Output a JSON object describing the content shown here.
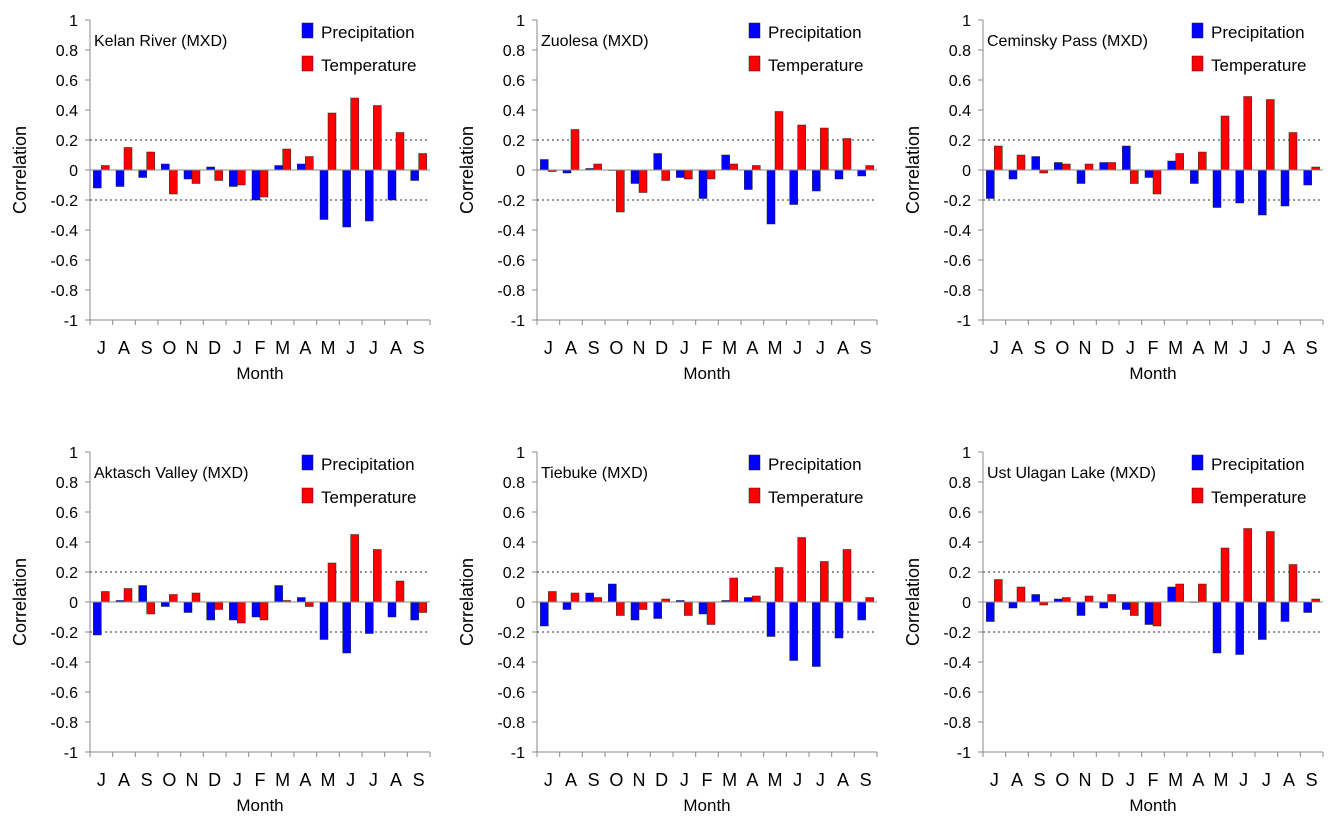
{
  "figure": {
    "xlabel": "Month",
    "ylabel": "Correlation",
    "legend_labels": [
      "Precipitation",
      "Temperature"
    ],
    "colors": {
      "precipitation": "#0000ff",
      "temperature": "#ff0000",
      "threshold_line": "#555555",
      "axis": "#888888"
    }
  },
  "chart_data": [
    {
      "type": "bar",
      "title": "Kelan River (MXD)",
      "categories": [
        "J",
        "A",
        "S",
        "O",
        "N",
        "D",
        "J",
        "F",
        "M",
        "A",
        "M",
        "J",
        "J",
        "A",
        "S"
      ],
      "series": [
        {
          "name": "Precipitation",
          "values": [
            -0.12,
            -0.11,
            -0.05,
            0.04,
            -0.06,
            0.02,
            -0.11,
            -0.2,
            0.03,
            0.04,
            -0.33,
            -0.38,
            -0.34,
            -0.2,
            -0.07
          ]
        },
        {
          "name": "Temperature",
          "values": [
            0.03,
            0.15,
            0.12,
            -0.16,
            -0.09,
            -0.07,
            -0.1,
            -0.18,
            0.14,
            0.09,
            0.38,
            0.48,
            0.43,
            0.25,
            0.11
          ]
        }
      ],
      "yticks": [
        "1",
        "0.8",
        "0.6",
        "0.4",
        "0.2",
        "0",
        "-0.2",
        "-0.4",
        "-0.6",
        "-0.8",
        "-1"
      ],
      "ylim": [
        -1,
        1
      ],
      "threshold_lines": [
        0.2,
        -0.2
      ],
      "xlabel": "Month",
      "ylabel": "Correlation",
      "legend": "top-right"
    },
    {
      "type": "bar",
      "title": "Zuolesa (MXD)",
      "categories": [
        "J",
        "A",
        "S",
        "O",
        "N",
        "D",
        "J",
        "F",
        "M",
        "A",
        "M",
        "J",
        "J",
        "A",
        "S"
      ],
      "series": [
        {
          "name": "Precipitation",
          "values": [
            0.07,
            -0.02,
            0.01,
            0.0,
            -0.09,
            0.11,
            -0.05,
            -0.19,
            0.1,
            -0.13,
            -0.36,
            -0.23,
            -0.14,
            -0.06,
            -0.04
          ]
        },
        {
          "name": "Temperature",
          "values": [
            -0.01,
            0.27,
            0.04,
            -0.28,
            -0.15,
            -0.07,
            -0.06,
            -0.06,
            0.04,
            0.03,
            0.39,
            0.3,
            0.28,
            0.21,
            0.03
          ]
        }
      ],
      "yticks": [
        "1",
        "0.8",
        "0.6",
        "0.4",
        "0.2",
        "0",
        "-0.2",
        "-0.4",
        "-0.6",
        "-0.8",
        "-1"
      ],
      "ylim": [
        -1,
        1
      ],
      "threshold_lines": [
        0.2,
        -0.2
      ],
      "xlabel": "Month",
      "ylabel": "Correlation",
      "legend": "top-right"
    },
    {
      "type": "bar",
      "title": "Ceminsky Pass (MXD)",
      "categories": [
        "J",
        "A",
        "S",
        "O",
        "N",
        "D",
        "J",
        "F",
        "M",
        "A",
        "M",
        "J",
        "J",
        "A",
        "S"
      ],
      "series": [
        {
          "name": "Precipitation",
          "values": [
            -0.19,
            -0.06,
            0.09,
            0.05,
            -0.09,
            0.05,
            0.16,
            -0.05,
            0.06,
            -0.09,
            -0.25,
            -0.22,
            -0.3,
            -0.24,
            -0.1
          ]
        },
        {
          "name": "Temperature",
          "values": [
            0.16,
            0.1,
            -0.02,
            0.04,
            0.04,
            0.05,
            -0.09,
            -0.16,
            0.11,
            0.12,
            0.36,
            0.49,
            0.47,
            0.25,
            0.02
          ]
        }
      ],
      "yticks": [
        "1",
        "0.8",
        "0.6",
        "0.4",
        "0.2",
        "0",
        "-0.2",
        "-0.4",
        "-0.6",
        "-0.8",
        "-1"
      ],
      "ylim": [
        -1,
        1
      ],
      "threshold_lines": [
        0.2,
        -0.2
      ],
      "xlabel": "Month",
      "ylabel": "Correlation",
      "legend": "top-right"
    },
    {
      "type": "bar",
      "title": "Aktasch Valley (MXD)",
      "categories": [
        "J",
        "A",
        "S",
        "O",
        "N",
        "D",
        "J",
        "F",
        "M",
        "A",
        "M",
        "J",
        "J",
        "A",
        "S"
      ],
      "series": [
        {
          "name": "Precipitation",
          "values": [
            -0.22,
            0.01,
            0.11,
            -0.03,
            -0.07,
            -0.12,
            -0.12,
            -0.1,
            0.11,
            0.03,
            -0.25,
            -0.34,
            -0.21,
            -0.1,
            -0.12
          ]
        },
        {
          "name": "Temperature",
          "values": [
            0.07,
            0.09,
            -0.08,
            0.05,
            0.06,
            -0.05,
            -0.14,
            -0.12,
            0.01,
            -0.03,
            0.26,
            0.45,
            0.35,
            0.14,
            -0.07
          ]
        }
      ],
      "yticks": [
        "1",
        "0.8",
        "0.6",
        "0.4",
        "0.2",
        "0",
        "-0.2",
        "-0.4",
        "-0.6",
        "-0.8",
        "-1"
      ],
      "ylim": [
        -1,
        1
      ],
      "threshold_lines": [
        0.2,
        -0.2
      ],
      "xlabel": "Month",
      "ylabel": "Correlation",
      "legend": "top-right"
    },
    {
      "type": "bar",
      "title": "Tiebuke (MXD)",
      "categories": [
        "J",
        "A",
        "S",
        "O",
        "N",
        "D",
        "J",
        "F",
        "M",
        "A",
        "M",
        "J",
        "J",
        "A",
        "S"
      ],
      "series": [
        {
          "name": "Precipitation",
          "values": [
            -0.16,
            -0.05,
            0.06,
            0.12,
            -0.12,
            -0.11,
            0.01,
            -0.08,
            0.01,
            0.03,
            -0.23,
            -0.39,
            -0.43,
            -0.24,
            -0.12
          ]
        },
        {
          "name": "Temperature",
          "values": [
            0.07,
            0.06,
            0.03,
            -0.09,
            -0.05,
            0.02,
            -0.09,
            -0.15,
            0.16,
            0.04,
            0.23,
            0.43,
            0.27,
            0.35,
            0.03
          ]
        }
      ],
      "yticks": [
        "1",
        "0.8",
        "0.6",
        "0.4",
        "0.2",
        "0",
        "-0.2",
        "-0.4",
        "-0.6",
        "-0.8",
        "-1"
      ],
      "ylim": [
        -1,
        1
      ],
      "threshold_lines": [
        0.2,
        -0.2
      ],
      "xlabel": "Month",
      "ylabel": "Correlation",
      "legend": "top-right"
    },
    {
      "type": "bar",
      "title": "Ust Ulagan Lake (MXD)",
      "categories": [
        "J",
        "A",
        "S",
        "O",
        "N",
        "D",
        "J",
        "F",
        "M",
        "A",
        "M",
        "J",
        "J",
        "A",
        "S"
      ],
      "series": [
        {
          "name": "Precipitation",
          "values": [
            -0.13,
            -0.04,
            0.05,
            0.02,
            -0.09,
            -0.04,
            -0.05,
            -0.15,
            0.1,
            0.0,
            -0.34,
            -0.35,
            -0.25,
            -0.13,
            -0.07
          ]
        },
        {
          "name": "Temperature",
          "values": [
            0.15,
            0.1,
            -0.02,
            0.03,
            0.04,
            0.05,
            -0.09,
            -0.16,
            0.12,
            0.12,
            0.36,
            0.49,
            0.47,
            0.25,
            0.02
          ]
        }
      ],
      "yticks": [
        "1",
        "0.8",
        "0.6",
        "0.4",
        "0.2",
        "0",
        "-0.2",
        "-0.4",
        "-0.6",
        "-0.8",
        "-1"
      ],
      "ylim": [
        -1,
        1
      ],
      "threshold_lines": [
        0.2,
        -0.2
      ],
      "xlabel": "Month",
      "ylabel": "Correlation",
      "legend": "top-right"
    }
  ]
}
